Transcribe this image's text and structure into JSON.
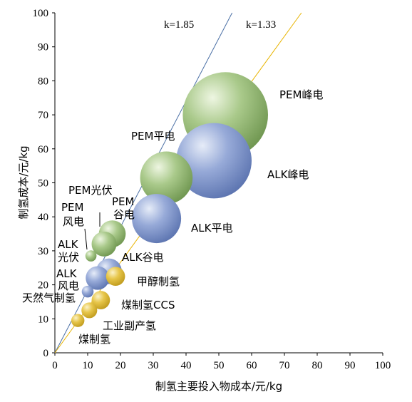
{
  "chart_data": {
    "type": "scatter",
    "xlabel": "制氢主要投入物成本/元/kg",
    "ylabel": "制氢成本/元/kg",
    "xlim": [
      0,
      100
    ],
    "ylim": [
      0,
      100
    ],
    "x_ticks": [
      "0",
      "10",
      "20",
      "30",
      "40",
      "50",
      "60",
      "70",
      "80",
      "90",
      "100"
    ],
    "y_ticks": [
      "0",
      "10",
      "20",
      "30",
      "40",
      "50",
      "60",
      "70",
      "80",
      "90",
      "100"
    ],
    "grid": false,
    "colors": {
      "blue_line": "#4a6fa5",
      "yellow_line": "#e8b400",
      "green_bubble": "#8fb36b",
      "blue_bubble": "#7f96c9",
      "yellow_bubble": "#e2c040"
    },
    "reference_lines": [
      {
        "label": "k=1.85",
        "slope": 1.85,
        "color": "blue"
      },
      {
        "label": "k=1.33",
        "slope": 1.33,
        "color": "yellow"
      }
    ],
    "series": [
      {
        "name": "PEM峰电",
        "x": 52,
        "y": 70,
        "size": 13,
        "color": "green"
      },
      {
        "name": "ALK峰电",
        "x": 48.5,
        "y": 56.5,
        "size": 11.5,
        "color": "blue"
      },
      {
        "name": "PEM平电",
        "x": 34,
        "y": 51.5,
        "size": 8,
        "color": "green"
      },
      {
        "name": "ALK平电",
        "x": 31,
        "y": 39.5,
        "size": 7.5,
        "color": "blue"
      },
      {
        "name": "PEM谷电",
        "x": 17.5,
        "y": 35,
        "size": 4.1,
        "color": "green"
      },
      {
        "name": "PEM风电",
        "x": 15,
        "y": 32,
        "size": 3.8,
        "color": "green"
      },
      {
        "name": "ALK谷电",
        "x": 16.5,
        "y": 24,
        "size": 3.9,
        "color": "blue"
      },
      {
        "name": "ALK光伏",
        "x": 11,
        "y": 28.5,
        "size": 1.7,
        "color": "green"
      },
      {
        "name": "ALK风电",
        "x": 13,
        "y": 22,
        "size": 3.6,
        "color": "blue"
      },
      {
        "name": "甲醇制氢",
        "x": 18.5,
        "y": 22.5,
        "size": 2.9,
        "color": "yellow"
      },
      {
        "name": "天然气制氢",
        "x": 10,
        "y": 18,
        "size": 1.8,
        "color": "blue"
      },
      {
        "name": "煤制氢CCS",
        "x": 14,
        "y": 15.5,
        "size": 2.8,
        "color": "yellow"
      },
      {
        "name": "工业副产氢",
        "x": 10.5,
        "y": 12.5,
        "size": 2.4,
        "color": "yellow"
      },
      {
        "name": "煤制氢",
        "x": 7,
        "y": 9.5,
        "size": 2,
        "color": "yellow"
      }
    ],
    "labels": {
      "pem_peak": "PEM峰电",
      "alk_peak": "ALK峰电",
      "pem_flat": "PEM平电",
      "alk_flat": "ALK平电",
      "pem_pv": "PEM光伏",
      "pem_valley_1": "PEM",
      "pem_valley_2": "谷电",
      "pem_wind_1": "PEM",
      "pem_wind_2": "风电",
      "alk_valley": "ALK谷电",
      "alk_pv_1": "ALK",
      "alk_pv_2": "光伏",
      "alk_wind_1": "ALK",
      "alk_wind_2": "风电",
      "methanol": "甲醇制氢",
      "natgas": "天然气制氢",
      "coal_ccs": "煤制氢CCS",
      "byproduct": "工业副产氢",
      "coal": "煤制氢"
    }
  }
}
